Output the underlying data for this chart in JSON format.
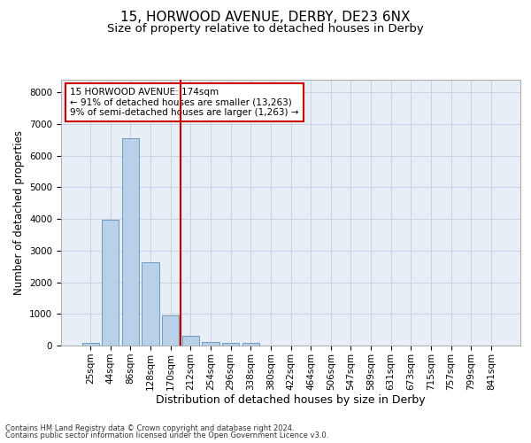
{
  "title1": "15, HORWOOD AVENUE, DERBY, DE23 6NX",
  "title2": "Size of property relative to detached houses in Derby",
  "xlabel": "Distribution of detached houses by size in Derby",
  "ylabel": "Number of detached properties",
  "categories": [
    "25sqm",
    "44sqm",
    "86sqm",
    "128sqm",
    "170sqm",
    "212sqm",
    "254sqm",
    "296sqm",
    "338sqm",
    "380sqm",
    "422sqm",
    "464sqm",
    "506sqm",
    "547sqm",
    "589sqm",
    "631sqm",
    "673sqm",
    "715sqm",
    "757sqm",
    "799sqm",
    "841sqm"
  ],
  "bar_values": [
    75,
    3980,
    6560,
    2620,
    960,
    310,
    120,
    95,
    80,
    0,
    0,
    0,
    0,
    0,
    0,
    0,
    0,
    0,
    0,
    0,
    0
  ],
  "bar_color": "#b8d0e8",
  "bar_edge_color": "#6090b8",
  "grid_color": "#c8d4e4",
  "background_color": "#e8eef6",
  "vline_x_index": 4.52,
  "vline_color": "#cc0000",
  "annotation_text": "15 HORWOOD AVENUE: 174sqm\n← 91% of detached houses are smaller (13,263)\n9% of semi-detached houses are larger (1,263) →",
  "annotation_box_color": "#cc0000",
  "ylim": [
    0,
    8400
  ],
  "yticks": [
    0,
    1000,
    2000,
    3000,
    4000,
    5000,
    6000,
    7000,
    8000
  ],
  "footnote1": "Contains HM Land Registry data © Crown copyright and database right 2024.",
  "footnote2": "Contains public sector information licensed under the Open Government Licence v3.0.",
  "title1_fontsize": 11,
  "title2_fontsize": 9.5,
  "xlabel_fontsize": 9,
  "ylabel_fontsize": 8.5,
  "tick_fontsize": 7.5,
  "annot_fontsize": 7.5,
  "footnote_fontsize": 6
}
